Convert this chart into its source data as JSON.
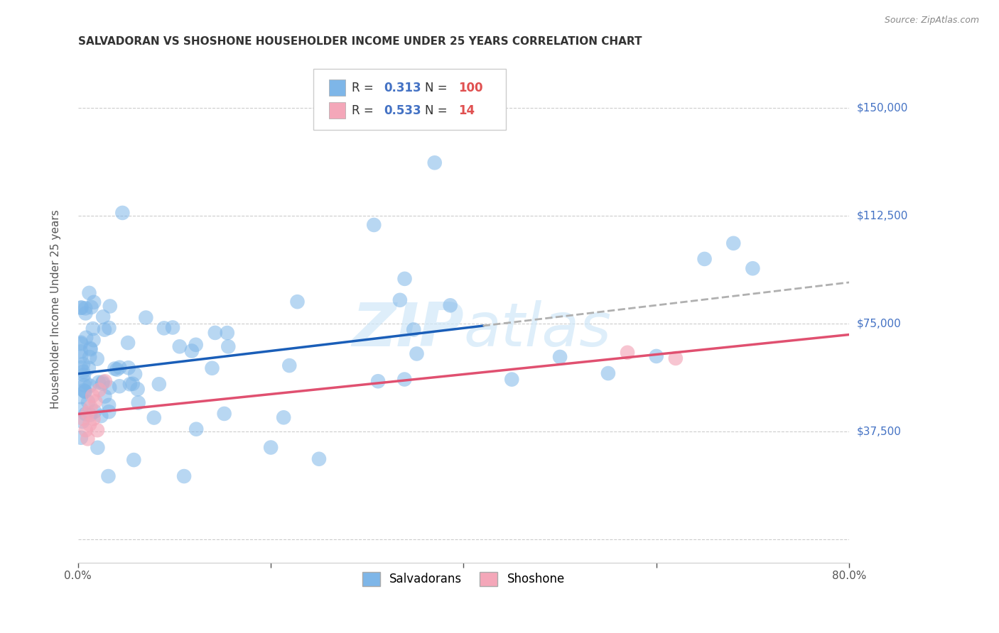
{
  "title": "SALVADORAN VS SHOSHONE HOUSEHOLDER INCOME UNDER 25 YEARS CORRELATION CHART",
  "source_text": "Source: ZipAtlas.com",
  "ylabel": "Householder Income Under 25 years",
  "xlim": [
    0.0,
    0.8
  ],
  "ylim": [
    -8000,
    168000
  ],
  "ytick_vals": [
    0,
    37500,
    75000,
    112500,
    150000
  ],
  "ytick_labels_right": [
    "$37,500",
    "$75,000",
    "$112,500",
    "$150,000"
  ],
  "ytick_vals_right": [
    37500,
    75000,
    112500,
    150000
  ],
  "salvadoran_color": "#7eb6e8",
  "shoshone_color": "#f4a7b9",
  "blue_line_color": "#1a5eb8",
  "pink_line_color": "#e05070",
  "dashed_line_color": "#b0b0b0",
  "background_color": "#ffffff",
  "grid_color": "#cccccc",
  "legend_r1": "0.313",
  "legend_n1": "100",
  "legend_r2": "0.533",
  "legend_n2": "14",
  "r_color": "#4472c4",
  "n_color": "#e05050",
  "watermark_color": "#d0e8f8"
}
